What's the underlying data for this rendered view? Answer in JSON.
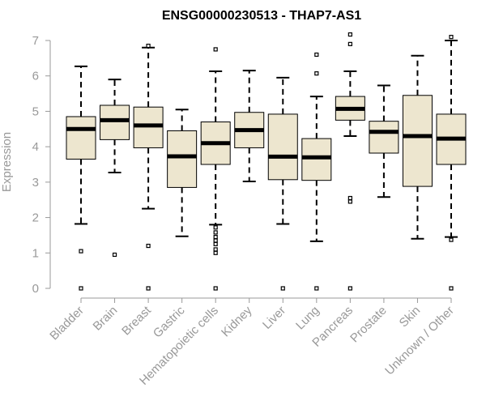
{
  "chart_data": {
    "type": "boxplot",
    "title": "ENSG00000230513 - THAP7-AS1",
    "xlabel": "",
    "ylabel": "Expression",
    "ylim": [
      0,
      7
    ],
    "yticks": [
      0,
      1,
      2,
      3,
      4,
      5,
      6,
      7
    ],
    "grid": false,
    "colors": {
      "box_fill": "#ede6cf",
      "median": "#000000",
      "axis": "#999999",
      "tick_label": "#999999"
    },
    "categories": [
      "Bladder",
      "Brain",
      "Breast",
      "Gastric",
      "Hematopoietic cells",
      "Kidney",
      "Liver",
      "Lung",
      "Pancreas",
      "Prostate",
      "Skin",
      "Unknown / Other"
    ],
    "boxes": [
      {
        "category": "Bladder",
        "whisker_low": 1.82,
        "q1": 3.65,
        "median": 4.5,
        "q3": 4.85,
        "whisker_high": 6.27,
        "outliers": [
          1.05,
          0.0
        ]
      },
      {
        "category": "Brain",
        "whisker_low": 3.27,
        "q1": 4.2,
        "median": 4.75,
        "q3": 5.17,
        "whisker_high": 5.9,
        "outliers": [
          0.95
        ]
      },
      {
        "category": "Breast",
        "whisker_low": 2.25,
        "q1": 3.97,
        "median": 4.6,
        "q3": 5.12,
        "whisker_high": 6.8,
        "outliers": [
          6.85,
          1.2,
          0.0
        ]
      },
      {
        "category": "Gastric",
        "whisker_low": 1.47,
        "q1": 2.85,
        "median": 3.73,
        "q3": 4.45,
        "whisker_high": 5.05,
        "outliers": []
      },
      {
        "category": "Hematopoietic cells",
        "whisker_low": 1.8,
        "q1": 3.5,
        "median": 4.1,
        "q3": 4.7,
        "whisker_high": 6.13,
        "outliers": [
          6.75,
          1.72,
          1.58,
          1.45,
          1.35,
          1.25,
          1.1,
          1.0,
          0.0
        ]
      },
      {
        "category": "Kidney",
        "whisker_low": 3.02,
        "q1": 3.97,
        "median": 4.47,
        "q3": 4.97,
        "whisker_high": 6.15,
        "outliers": []
      },
      {
        "category": "Liver",
        "whisker_low": 1.82,
        "q1": 3.07,
        "median": 3.72,
        "q3": 4.92,
        "whisker_high": 5.95,
        "outliers": [
          0.0
        ]
      },
      {
        "category": "Lung",
        "whisker_low": 1.33,
        "q1": 3.05,
        "median": 3.7,
        "q3": 4.23,
        "whisker_high": 5.42,
        "outliers": [
          6.6,
          6.07,
          0.0
        ]
      },
      {
        "category": "Pancreas",
        "whisker_low": 4.3,
        "q1": 4.75,
        "median": 5.07,
        "q3": 5.42,
        "whisker_high": 6.13,
        "outliers": [
          7.17,
          6.9,
          2.55,
          2.45,
          0.0
        ]
      },
      {
        "category": "Prostate",
        "whisker_low": 2.58,
        "q1": 3.82,
        "median": 4.42,
        "q3": 4.72,
        "whisker_high": 5.73,
        "outliers": []
      },
      {
        "category": "Skin",
        "whisker_low": 1.4,
        "q1": 2.88,
        "median": 4.3,
        "q3": 5.45,
        "whisker_high": 6.57,
        "outliers": []
      },
      {
        "category": "Unknown / Other",
        "whisker_low": 1.45,
        "q1": 3.5,
        "median": 4.23,
        "q3": 4.92,
        "whisker_high": 7.0,
        "outliers": [
          7.1,
          1.37,
          0.0
        ]
      }
    ]
  }
}
